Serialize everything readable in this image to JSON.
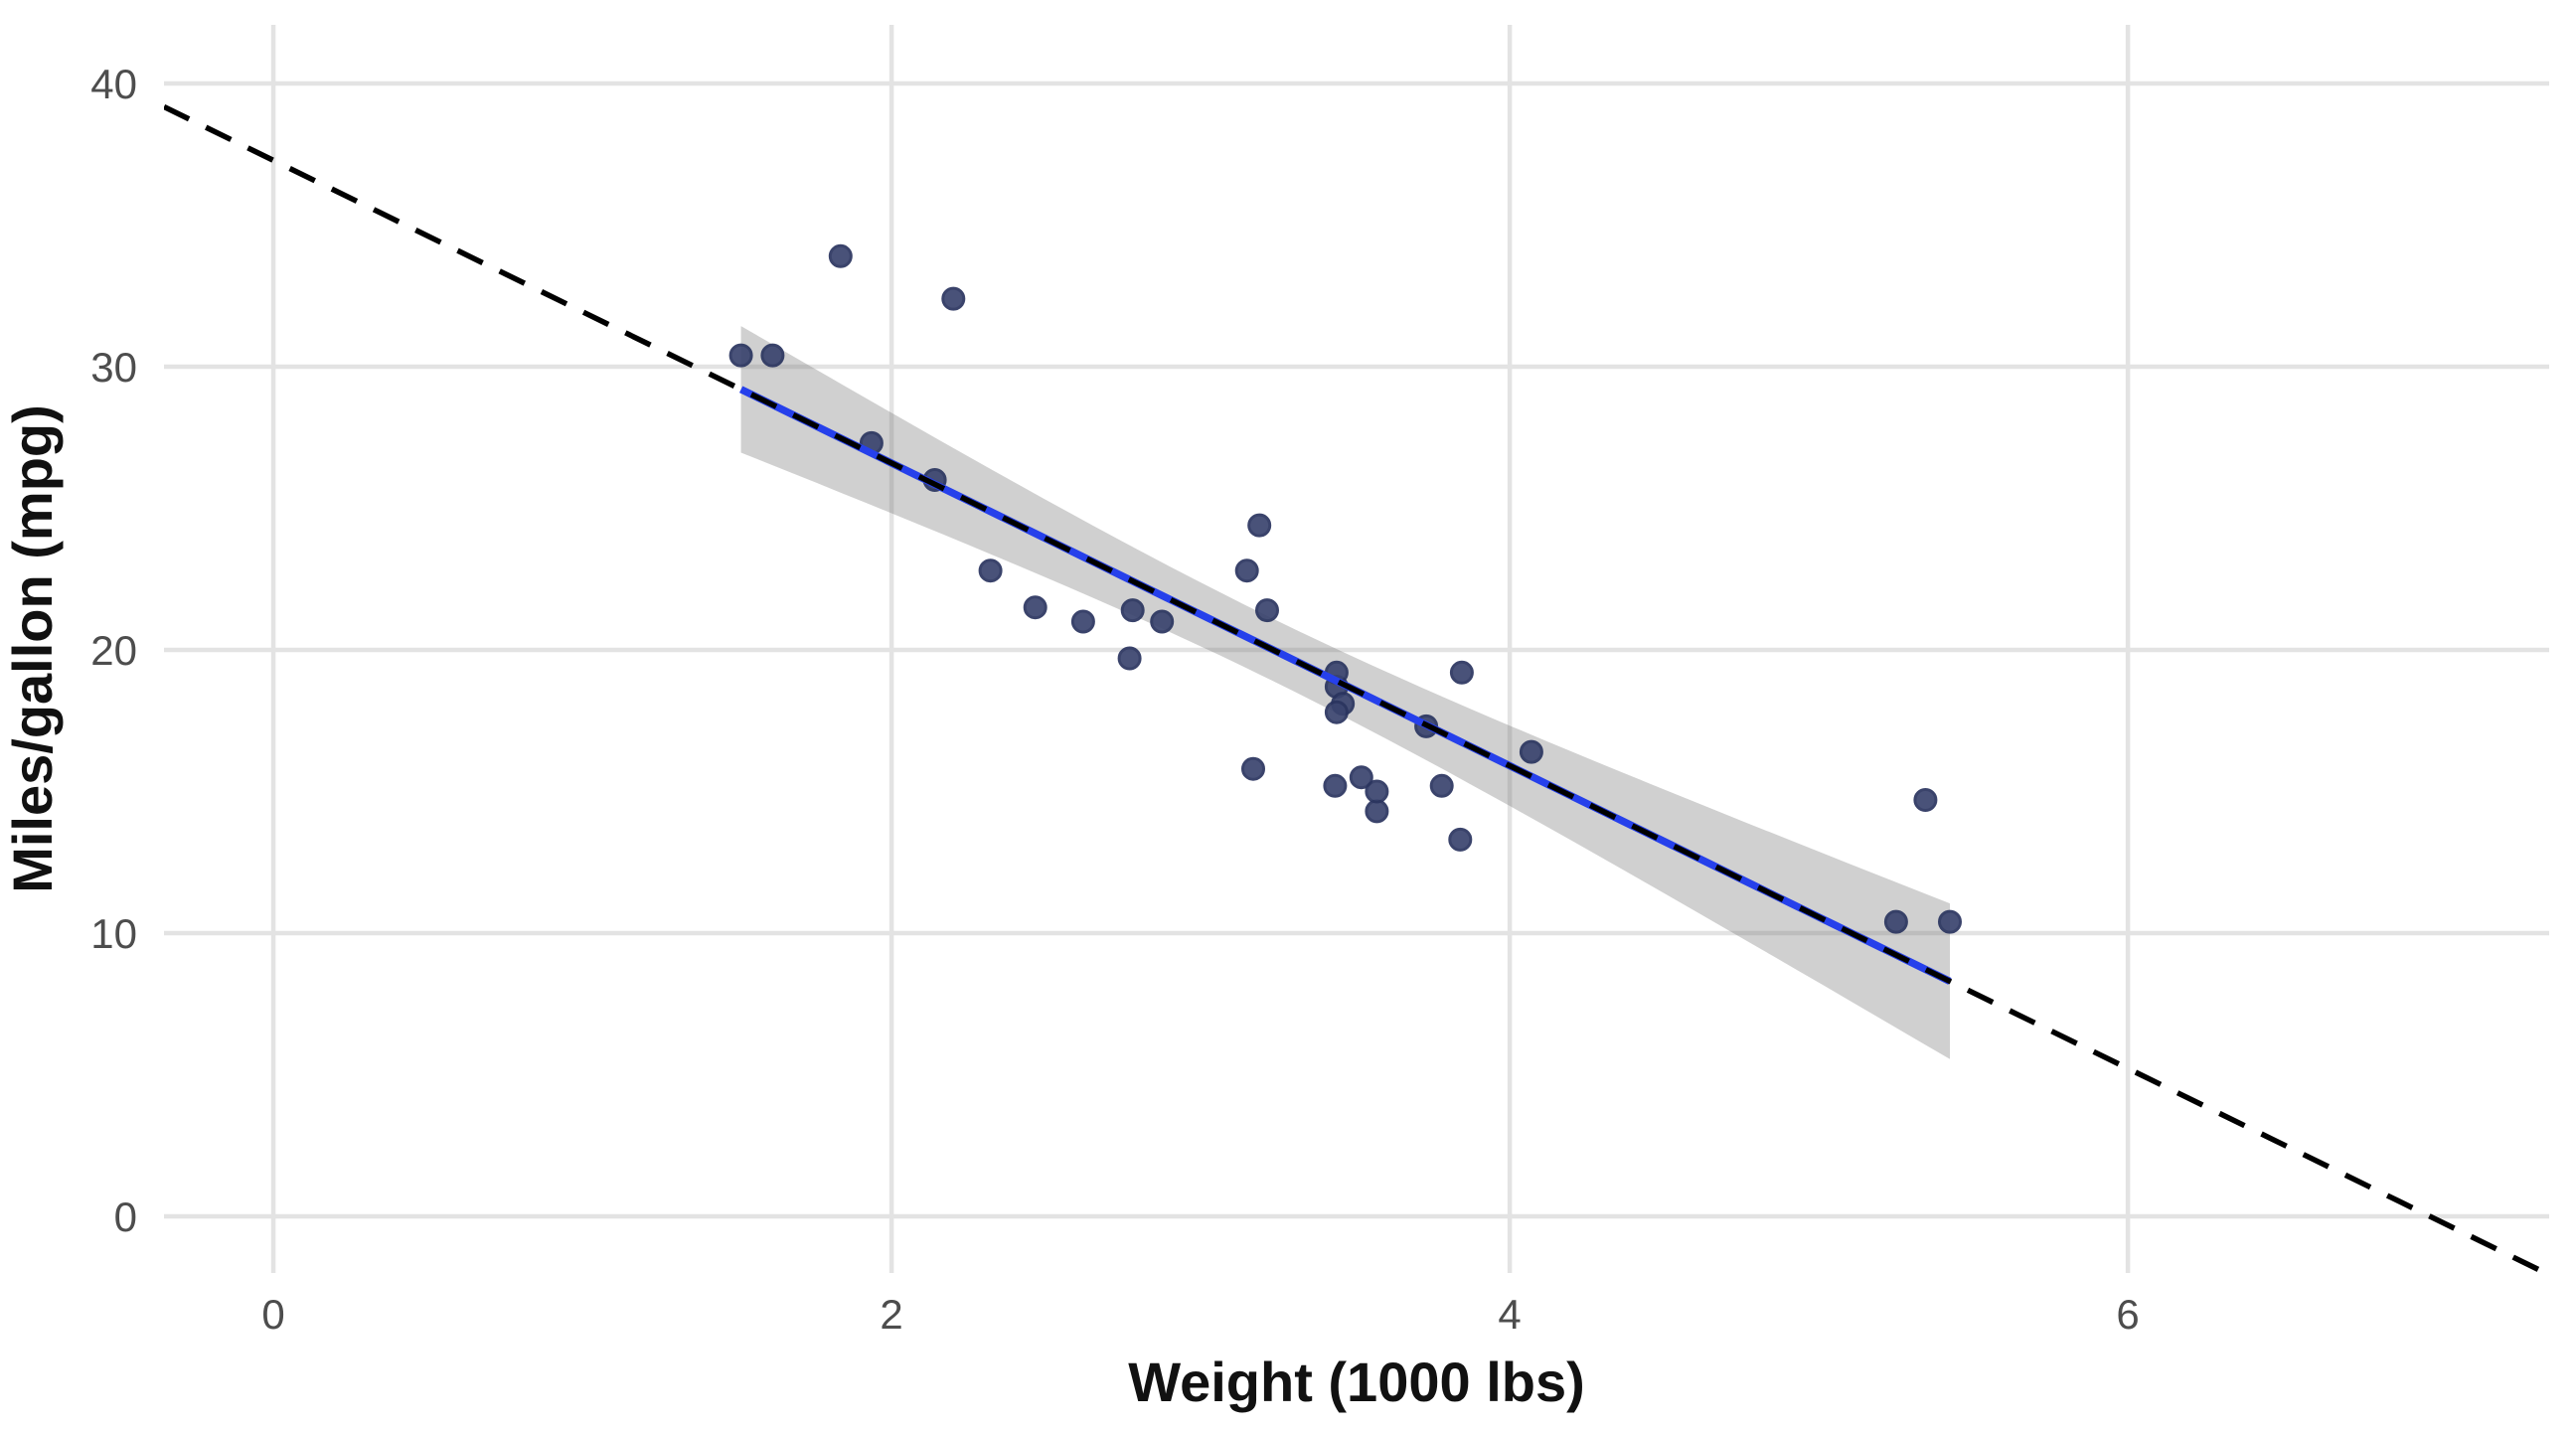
{
  "chart_data": {
    "type": "scatter",
    "title": "",
    "xlabel": "Weight (1000 lbs)",
    "ylabel": "Miles/gallon (mpg)",
    "x_ticks": [
      0,
      2,
      4,
      6
    ],
    "y_ticks": [
      0,
      10,
      20,
      30,
      40
    ],
    "xlim": [
      -0.354,
      7.363
    ],
    "ylim": [
      -2.0,
      42.07
    ],
    "grid": "major-only",
    "legend": "none",
    "points": [
      [
        2.62,
        21.0
      ],
      [
        2.875,
        21.0
      ],
      [
        2.32,
        22.8
      ],
      [
        3.215,
        21.4
      ],
      [
        3.44,
        18.7
      ],
      [
        3.46,
        18.1
      ],
      [
        3.57,
        14.3
      ],
      [
        3.19,
        24.4
      ],
      [
        3.15,
        22.8
      ],
      [
        3.44,
        19.2
      ],
      [
        3.44,
        17.8
      ],
      [
        4.07,
        16.4
      ],
      [
        3.73,
        17.3
      ],
      [
        3.78,
        15.2
      ],
      [
        5.25,
        10.4
      ],
      [
        5.424,
        10.4
      ],
      [
        5.345,
        14.7
      ],
      [
        2.2,
        32.4
      ],
      [
        1.615,
        30.4
      ],
      [
        1.835,
        33.9
      ],
      [
        2.465,
        21.5
      ],
      [
        3.52,
        15.5
      ],
      [
        3.435,
        15.2
      ],
      [
        3.84,
        13.3
      ],
      [
        3.845,
        19.2
      ],
      [
        1.935,
        27.3
      ],
      [
        2.14,
        26.0
      ],
      [
        1.513,
        30.4
      ],
      [
        3.17,
        15.8
      ],
      [
        2.77,
        19.7
      ],
      [
        3.57,
        15.0
      ],
      [
        2.78,
        21.4
      ]
    ],
    "regression": {
      "intercept": 37.285,
      "slope": -5.344,
      "smooth_x_range": [
        1.513,
        5.424
      ],
      "ci": {
        "sigma": 3.046,
        "n": 32,
        "mean_x": 3.2172,
        "sxx": 29.678,
        "t_crit": 2.042
      }
    },
    "colors": {
      "background": "#ffffff",
      "gridline": "#e3e3e3",
      "point_fill": "#3a446e",
      "point_stroke": "#2a345f",
      "point_opacity": "0.92",
      "smooth_line": "#2640eb",
      "abline": "#000000",
      "ribbon": "rgba(110,110,110,0.32)",
      "tick_label": "#4d4d4d",
      "axis_title": "#111111"
    }
  }
}
